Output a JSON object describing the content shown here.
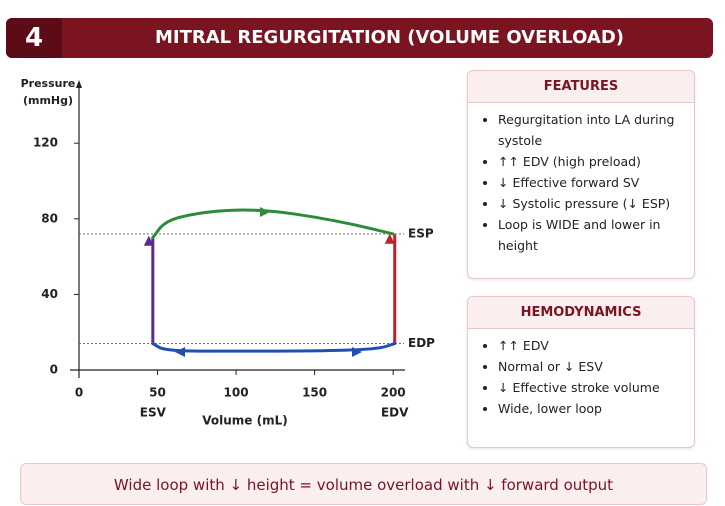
{
  "header": {
    "number": "4",
    "title": "MITRAL REGURGITATION (VOLUME OVERLOAD)"
  },
  "chart_data": {
    "type": "line",
    "y_label": [
      "Pressure",
      "(mmHg)"
    ],
    "x_label": "Volume (mL)",
    "xlim": [
      0,
      205
    ],
    "ylim": [
      0,
      150
    ],
    "xticks": [
      0,
      50,
      100,
      150,
      200
    ],
    "yticks": [
      0,
      40,
      80,
      120
    ],
    "series": [
      {
        "color": "#5b2a8c",
        "x": [
          47,
          47
        ],
        "values": [
          14,
          70
        ]
      },
      {
        "color": "#2e8b3a",
        "x": [
          47,
          55,
          75,
          100,
          125,
          150,
          175,
          200
        ],
        "values": [
          70,
          79,
          83,
          85,
          84,
          81,
          77,
          72
        ]
      },
      {
        "color": "#c0202a",
        "x": [
          201,
          201
        ],
        "values": [
          14,
          71
        ]
      },
      {
        "color": "#1f4fb0",
        "x": [
          47,
          55,
          100,
          150,
          190,
          201
        ],
        "values": [
          14,
          10,
          10,
          10,
          11,
          14
        ]
      }
    ],
    "annotations": [
      {
        "label": "ESP",
        "y": 72
      },
      {
        "label": "EDP",
        "y": 14
      },
      {
        "label": "ESV",
        "x": 47
      },
      {
        "label": "EDV",
        "x": 201
      }
    ]
  },
  "features": {
    "title": "FEATURES",
    "items": [
      "Regurgitation into LA during systole",
      "↑↑ EDV (high preload)",
      "↓ Effective forward SV",
      "↓ Systolic pressure (↓ ESP)",
      "Loop is WIDE and lower in height"
    ]
  },
  "hemodynamics": {
    "title": "HEMODYNAMICS",
    "items": [
      "↑↑ EDV",
      "Normal or ↓ ESV",
      "↓ Effective stroke volume",
      "Wide, lower loop"
    ]
  },
  "footer": "Wide loop with ↓ height = volume overload with ↓ forward output"
}
